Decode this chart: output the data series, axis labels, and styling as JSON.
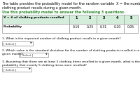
{
  "title_line1": "The table provides the probability model for the random variable  X = the number of",
  "title_line2": "clothing product recalls during a given month.",
  "subtitle": "Use this probability model to answer the following 3 questions.",
  "table_header": "X = # of clothing products recalled",
  "x_values": [
    "1",
    "2",
    "3",
    "4",
    "5"
  ],
  "probabilities": [
    "0.19",
    "0.25",
    "0.31",
    "0.20",
    "0.05"
  ],
  "q1": "1. What is the expected number of clothing product recalls in a given month?",
  "q1_select": "[ Select ]",
  "q2_line1": "2. Which value is the standard deviation for the number of clothing products recalled in a",
  "q2_line2": "given month?",
  "q2_select": "[ Select ]",
  "q3_line1": "3. Assuming that there are at least 3 clothing items recalled in a given month, what is the",
  "q3_line2": "probability that exactly 5 clothing items were recalled?",
  "q3_select": "[ Select ]",
  "header_bg": "#d4edda",
  "prob_row_bg": "#f0f0f0",
  "row_bg": "#ffffff",
  "border_color": "#aaaaaa",
  "subtitle_color": "#2e8b2e",
  "text_color": "#000000",
  "select_border": "#888888",
  "select_arrow_color": "#333333"
}
